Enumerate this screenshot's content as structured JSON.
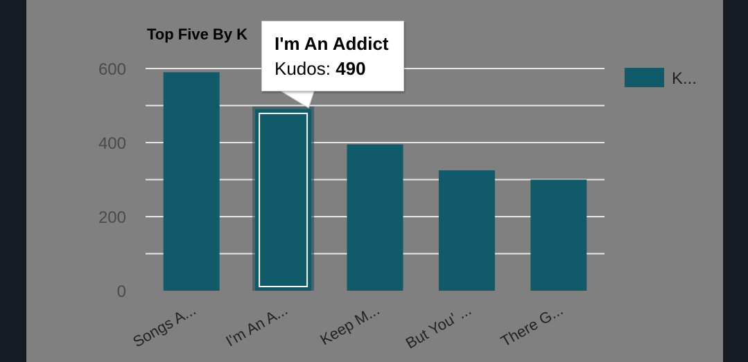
{
  "chart_data": {
    "type": "bar",
    "title": "Top Five By K",
    "categories": [
      "Songs A...",
      "I'm An A...",
      "Keep M...",
      "But You' ...",
      "There G..."
    ],
    "series": [
      {
        "name": "K...",
        "values": [
          590,
          490,
          395,
          325,
          300
        ]
      }
    ],
    "ylim": [
      0,
      600
    ],
    "yticks": [
      "0",
      "200",
      "400",
      "600"
    ],
    "grid": true,
    "legend": "right",
    "bar_color": "#115a6a",
    "highlighted_index": 1
  },
  "tooltip": {
    "title": "I'm An Addict",
    "label": "Kudos:",
    "value": "490"
  },
  "colors": {
    "background": "#808080",
    "frame": "#161a22"
  }
}
